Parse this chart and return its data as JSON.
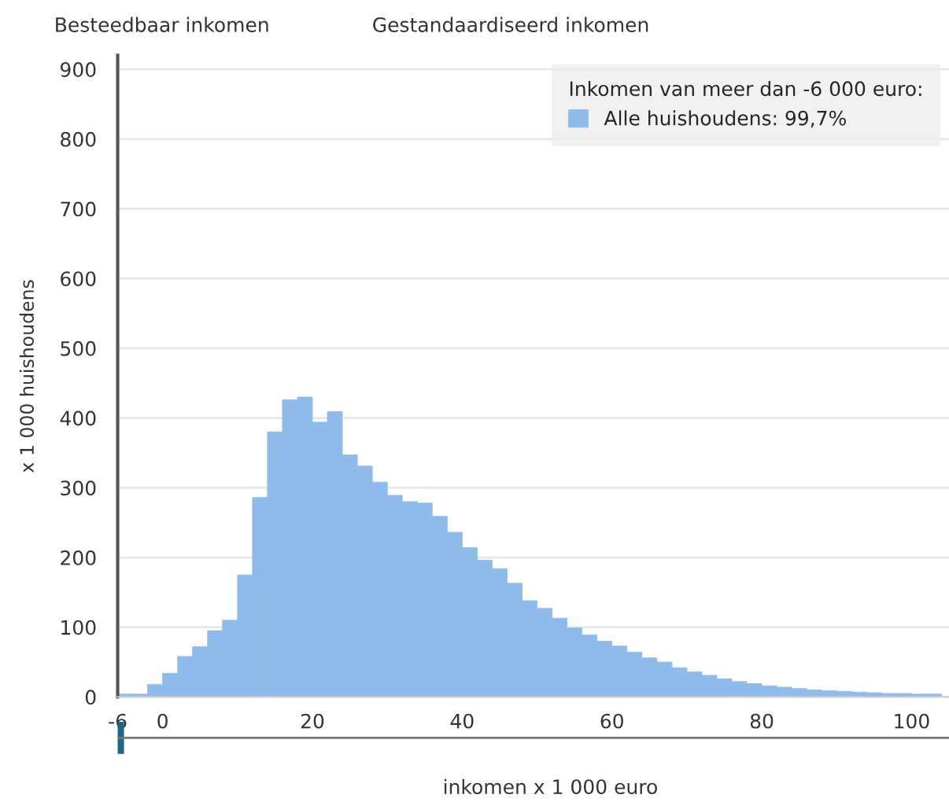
{
  "chart_data": {
    "type": "histogram",
    "xlabel": "inkomen x 1 000 euro",
    "ylabel": "x 1 000 huishoudens",
    "legend_title": "Inkomen van meer dan -6 000 euro:",
    "annotations": [
      "Besteedbaar inkomen",
      "Gestandaardiseerd inkomen"
    ],
    "bins": [
      -6,
      -4,
      -2,
      0,
      2,
      4,
      6,
      8,
      10,
      12,
      14,
      16,
      18,
      20,
      22,
      24,
      26,
      28,
      30,
      32,
      34,
      36,
      38,
      40,
      42,
      44,
      46,
      48,
      50,
      52,
      54,
      56,
      58,
      60,
      62,
      64,
      66,
      68,
      70,
      72,
      74,
      76,
      78,
      80,
      82,
      84,
      86,
      88,
      90,
      92,
      94,
      96,
      98,
      100,
      102,
      104
    ],
    "series": [
      {
        "name": "Alle huishoudens: 99,7%",
        "color": "#8fbbeb",
        "values": [
          4,
          4,
          18,
          34,
          58,
          72,
          95,
          110,
          175,
          286,
          380,
          426,
          430,
          394,
          409,
          347,
          331,
          308,
          289,
          280,
          278,
          259,
          236,
          214,
          196,
          184,
          163,
          138,
          127,
          113,
          99,
          89,
          80,
          73,
          64,
          56,
          50,
          42,
          36,
          31,
          26,
          22,
          19,
          16,
          14,
          12,
          10,
          9,
          8,
          7,
          6,
          5,
          5,
          4,
          4
        ]
      }
    ],
    "xlim": [
      -6,
      105
    ],
    "ylim": [
      0,
      920
    ],
    "xticks": [
      -6,
      0,
      20,
      40,
      60,
      80,
      100
    ],
    "yticks": [
      0,
      100,
      200,
      300,
      400,
      500,
      600,
      700,
      800,
      900
    ],
    "grid": "y",
    "legend": "top right"
  }
}
